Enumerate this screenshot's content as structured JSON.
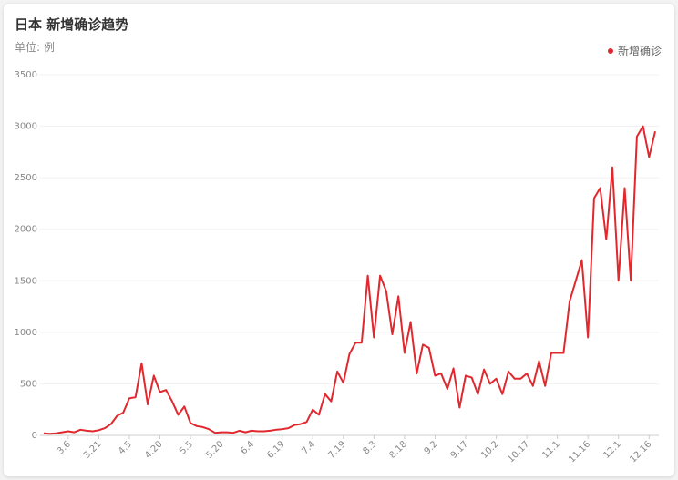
{
  "chart_data": {
    "type": "line",
    "title": "日本 新增确诊趋势",
    "subtitle": "单位: 例",
    "categories": [
      null,
      null,
      null,
      null,
      "3.6",
      null,
      null,
      null,
      null,
      "3.21",
      null,
      null,
      null,
      null,
      "4.5",
      null,
      null,
      null,
      null,
      "4.20",
      null,
      null,
      null,
      null,
      "5.5",
      null,
      null,
      null,
      null,
      "5.20",
      null,
      null,
      null,
      null,
      "6.4",
      null,
      null,
      null,
      null,
      "6.19",
      null,
      null,
      null,
      null,
      "7.4",
      null,
      null,
      null,
      null,
      "7.19",
      null,
      null,
      null,
      null,
      "8.3",
      null,
      null,
      null,
      null,
      "8.18",
      null,
      null,
      null,
      null,
      "9.2",
      null,
      null,
      null,
      null,
      "9.17",
      null,
      null,
      null,
      null,
      "10.2",
      null,
      null,
      null,
      null,
      "10.17",
      null,
      null,
      null,
      null,
      "11.1",
      null,
      null,
      null,
      null,
      "11.16",
      null,
      null,
      null,
      null,
      "12.1",
      null,
      null,
      null,
      null,
      "12.16",
      null
    ],
    "series": [
      {
        "name": "新增确诊",
        "color": "#e0282e",
        "values": [
          20,
          15,
          20,
          30,
          40,
          30,
          55,
          45,
          40,
          50,
          70,
          110,
          190,
          220,
          360,
          370,
          700,
          300,
          580,
          420,
          440,
          330,
          200,
          280,
          120,
          90,
          80,
          60,
          25,
          30,
          30,
          25,
          45,
          30,
          45,
          40,
          40,
          45,
          55,
          60,
          70,
          100,
          110,
          130,
          250,
          200,
          400,
          330,
          620,
          510,
          790,
          900,
          900,
          1550,
          950,
          1550,
          1400,
          980,
          1350,
          800,
          1100,
          600,
          880,
          850,
          580,
          600,
          450,
          650,
          270,
          580,
          560,
          400,
          640,
          500,
          550,
          400,
          620,
          550,
          550,
          600,
          480,
          720,
          480,
          800,
          800,
          800,
          1300,
          1500,
          1700,
          950,
          2300,
          2400,
          1900,
          2600,
          1500,
          2400,
          1500,
          2900,
          3000,
          2700,
          2950
        ]
      }
    ],
    "ylim": [
      0,
      3500
    ],
    "yticks": [
      0,
      500,
      1000,
      1500,
      2000,
      2500,
      3000,
      3500
    ],
    "grid": true,
    "legend": "top-right"
  }
}
